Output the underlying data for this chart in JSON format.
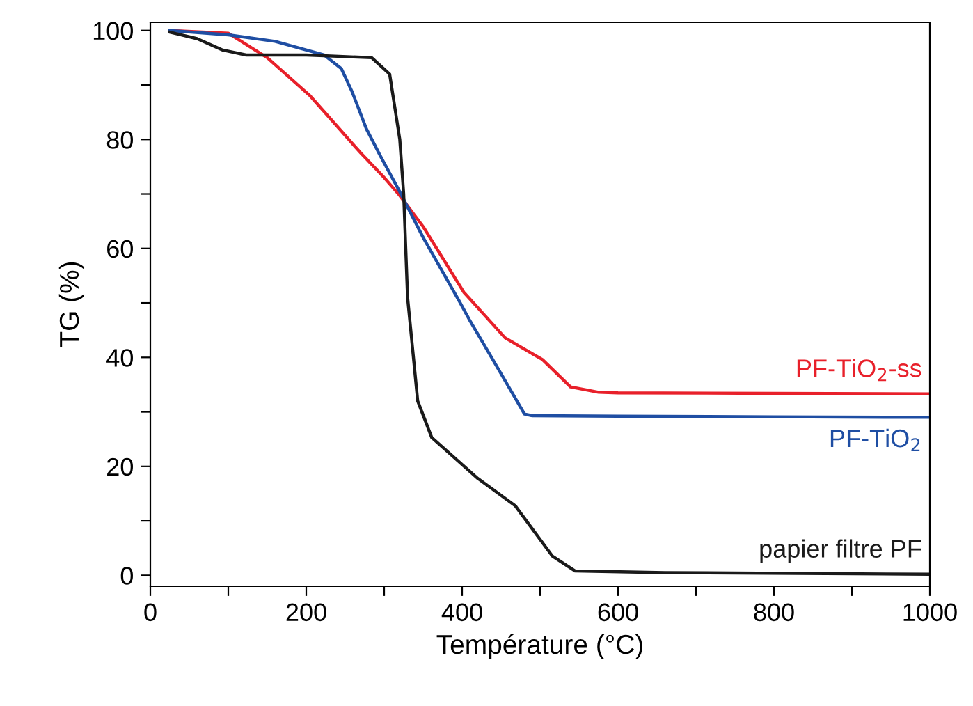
{
  "chart_data": {
    "type": "line",
    "xlabel": "Température (°C)",
    "ylabel": "TG (%)",
    "xlim": [
      0,
      1000
    ],
    "ylim": [
      -2,
      101.5
    ],
    "xticks": [
      0,
      {
        "value": 100,
        "label": null
      },
      200,
      {
        "value": 300,
        "label": null
      },
      400,
      {
        "value": 500,
        "label": null
      },
      600,
      {
        "value": 700,
        "label": null
      },
      800,
      {
        "value": 900,
        "label": null
      },
      1000
    ],
    "yticks": [
      0,
      {
        "value": 10,
        "label": null
      },
      20,
      {
        "value": 30,
        "label": null
      },
      40,
      {
        "value": 50,
        "label": null
      },
      60,
      {
        "value": 70,
        "label": null
      },
      80,
      {
        "value": 90,
        "label": null
      },
      100
    ],
    "grid": false,
    "legend": false,
    "marker": "none",
    "line_style": "solid",
    "series": [
      {
        "name": "PF-TiO$_{2}$-ss",
        "color": "#e8202a",
        "x": [
          25,
          100,
          150,
          205,
          236,
          270,
          300,
          320,
          350,
          402,
          455,
          503,
          539,
          575,
          600,
          800,
          1000
        ],
        "values": [
          100,
          99.5,
          95,
          88,
          83,
          77.5,
          73,
          69.7,
          64,
          52,
          43.6,
          39.6,
          34.6,
          33.6,
          33.5,
          33.4,
          33.3
        ]
      },
      {
        "name": "PF-TiO$_{2}$",
        "color": "#1f4ea3",
        "x": [
          25,
          100,
          160,
          223,
          245,
          259,
          277,
          295,
          320,
          350,
          396,
          409,
          450,
          480,
          490,
          600,
          800,
          1000
        ],
        "values": [
          100,
          99.2,
          98,
          95.5,
          93,
          88.7,
          82,
          77,
          70.4,
          62,
          50.4,
          47,
          37,
          29.6,
          29.3,
          29.2,
          29.1,
          29
        ]
      },
      {
        "name": "papier filtre PF",
        "color": "#1a1a1a",
        "x": [
          25,
          60,
          93,
          123,
          200,
          284,
          307,
          320,
          325,
          330,
          343,
          361,
          420,
          468,
          516,
          545,
          660,
          1000
        ],
        "values": [
          99.7,
          98.5,
          96.4,
          95.5,
          95.5,
          95,
          92,
          80,
          70,
          51,
          32,
          25.3,
          17.8,
          12.8,
          3.5,
          0.8,
          0.5,
          0.2
        ]
      }
    ]
  }
}
